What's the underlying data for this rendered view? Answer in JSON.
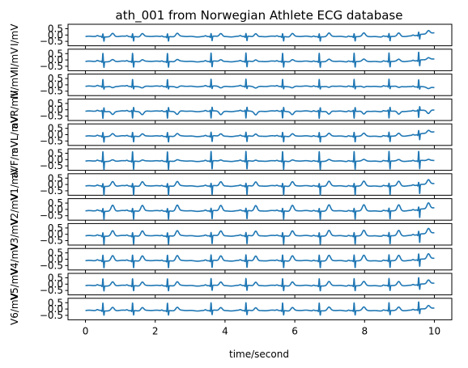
{
  "chart_data": {
    "type": "line",
    "title": "ath_001 from Norwegian Athlete ECG database",
    "xlabel": "time/second",
    "xlim": [
      -0.5,
      10.5
    ],
    "x_ticks": [
      0,
      2,
      4,
      6,
      8,
      10
    ],
    "y_ticks": [
      0.5,
      0.0,
      -0.5
    ],
    "ylim": [
      -0.85,
      0.85
    ],
    "grid": false,
    "colors": {
      "trace": "#1f77b4"
    },
    "beat_times": [
      0.5,
      1.35,
      2.35,
      3.6,
      4.6,
      5.65,
      6.7,
      7.7,
      8.7,
      9.55
    ],
    "leads": [
      {
        "ylabel": "I/mV",
        "r": 0.22,
        "s": -0.35,
        "t": 0.25,
        "drift": 0.3
      },
      {
        "ylabel": "II/mV",
        "r": 0.65,
        "s": -0.45,
        "t": 0.15,
        "drift": 0.2
      },
      {
        "ylabel": "III/mV",
        "r": 0.55,
        "s": -0.2,
        "t": -0.1,
        "drift": -0.1
      },
      {
        "ylabel": "aVR/mV",
        "r": -0.55,
        "s": 0.3,
        "t": -0.25,
        "drift": 0.1
      },
      {
        "ylabel": "aVL/mV",
        "r": 0.3,
        "s": -0.45,
        "t": 0.2,
        "drift": 0.35
      },
      {
        "ylabel": "aVF/mV",
        "r": 0.75,
        "s": -0.65,
        "t": 0.1,
        "drift": 0.05
      },
      {
        "ylabel": "V1/mV",
        "r": 0.2,
        "s": -0.7,
        "t": 0.35,
        "drift": 0.2
      },
      {
        "ylabel": "V2/mV",
        "r": 0.2,
        "s": -0.65,
        "t": 0.45,
        "drift": 0.25
      },
      {
        "ylabel": "V3/mV",
        "r": 0.25,
        "s": -0.65,
        "t": 0.4,
        "drift": 0.25
      },
      {
        "ylabel": "V4/mV",
        "r": 0.45,
        "s": -0.55,
        "t": 0.4,
        "drift": 0.2
      },
      {
        "ylabel": "V5/mV",
        "r": 0.55,
        "s": -0.4,
        "t": 0.3,
        "drift": 0.2
      },
      {
        "ylabel": "V6/mV",
        "r": 0.6,
        "s": -0.35,
        "t": 0.25,
        "drift": 0.2
      }
    ]
  }
}
